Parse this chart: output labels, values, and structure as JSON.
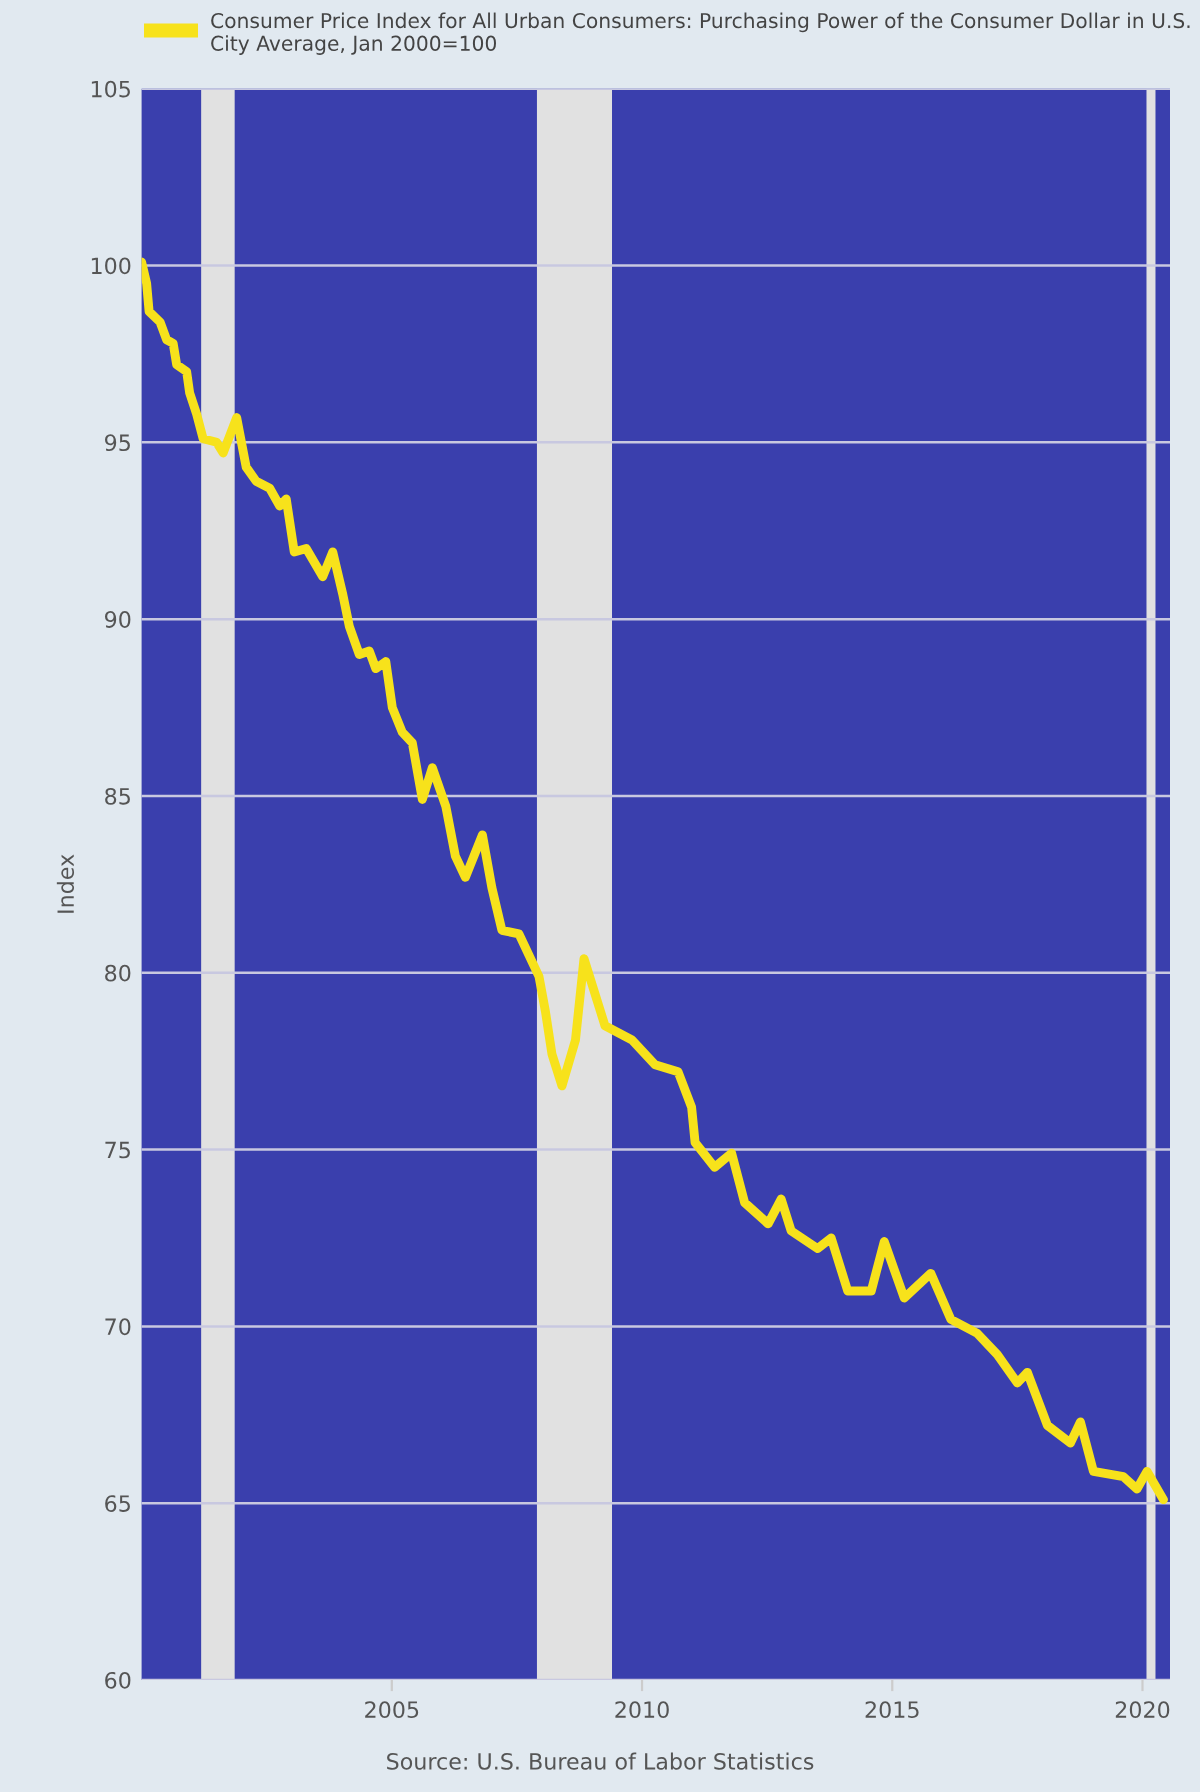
{
  "chart_data": {
    "type": "line",
    "ylabel": "Index",
    "annotations": [
      "Source: U.S. Bureau of Labor Statistics"
    ],
    "xlim": [
      2000.0,
      2020.55
    ],
    "xticks": [
      2005,
      2010,
      2015,
      2020
    ],
    "ylim": [
      60,
      105
    ],
    "yticks": [
      60,
      65,
      70,
      75,
      80,
      85,
      90,
      95,
      100,
      105
    ],
    "grid": "y",
    "legend": "top",
    "line_style": "solid",
    "bands": [
      {
        "axis": "x",
        "from": 2001.19,
        "to": 2001.86,
        "color": "#e1e1e1"
      },
      {
        "axis": "x",
        "from": 2007.9,
        "to": 2009.4,
        "color": "#e1e1e1"
      },
      {
        "axis": "x",
        "from": 2020.08,
        "to": 2020.26,
        "color": "#e1e1e1"
      }
    ],
    "series": [
      {
        "name": "Consumer Price Index for All Urban Consumers: Purchasing Power of the Consumer Dollar in U.S. City Average, Jan 2000=100",
        "color": "#f7e21b",
        "x": [
          2000.0,
          2000.1,
          2000.15,
          2000.37,
          2000.5,
          2000.63,
          2000.7,
          2000.9,
          2000.96,
          2001.1,
          2001.23,
          2001.5,
          2001.63,
          2001.9,
          2002.09,
          2002.29,
          2002.56,
          2002.76,
          2002.89,
          2003.05,
          2003.29,
          2003.62,
          2003.82,
          2004.02,
          2004.15,
          2004.35,
          2004.55,
          2004.68,
          2004.88,
          2005.01,
          2005.21,
          2005.41,
          2005.61,
          2005.81,
          2006.08,
          2006.27,
          2006.47,
          2006.81,
          2007.0,
          2007.2,
          2007.54,
          2007.74,
          2007.94,
          2008.07,
          2008.2,
          2008.4,
          2008.67,
          2008.84,
          2009.26,
          2009.8,
          2010.26,
          2010.72,
          2010.99,
          2011.06,
          2011.45,
          2011.79,
          2012.05,
          2012.52,
          2012.78,
          2012.98,
          2013.51,
          2013.78,
          2014.11,
          2014.58,
          2014.84,
          2015.24,
          2015.77,
          2016.17,
          2016.7,
          2017.1,
          2017.5,
          2017.7,
          2018.1,
          2018.56,
          2018.76,
          2019.02,
          2019.62,
          2019.89,
          2020.09,
          2020.42
        ],
        "values": [
          100.1,
          99.5,
          98.7,
          98.4,
          97.9,
          97.8,
          97.2,
          97.0,
          96.4,
          95.8,
          95.1,
          95.0,
          94.7,
          95.7,
          94.3,
          93.9,
          93.7,
          93.2,
          93.4,
          91.9,
          92.0,
          91.2,
          91.9,
          90.7,
          89.8,
          89.0,
          89.1,
          88.6,
          88.8,
          87.5,
          86.8,
          86.5,
          84.9,
          85.8,
          84.7,
          83.3,
          82.7,
          83.9,
          82.4,
          81.2,
          81.1,
          80.5,
          79.9,
          78.9,
          77.7,
          76.8,
          78.1,
          80.4,
          78.5,
          78.1,
          77.4,
          77.2,
          76.2,
          75.2,
          74.5,
          74.9,
          73.5,
          72.9,
          73.6,
          72.7,
          72.2,
          72.5,
          71.0,
          71.0,
          72.4,
          70.8,
          71.5,
          70.2,
          69.8,
          69.2,
          68.4,
          68.7,
          67.2,
          66.7,
          67.3,
          65.9,
          65.75,
          65.4,
          65.9,
          65.1
        ]
      }
    ]
  }
}
